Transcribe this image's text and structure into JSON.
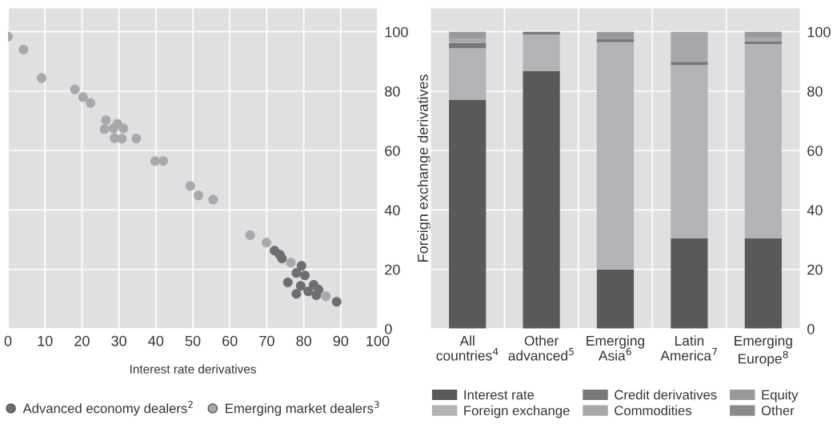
{
  "chart_data": [
    {
      "type": "scatter",
      "xlabel": "Interest rate derivatives",
      "ylabel": "Foreign exchange derivatives",
      "xlim": [
        0,
        100
      ],
      "ylim": [
        0,
        108
      ],
      "xticks": [
        0,
        10,
        20,
        30,
        40,
        50,
        60,
        70,
        80,
        90,
        100
      ],
      "yticks": [
        0,
        20,
        40,
        60,
        80,
        100
      ],
      "grid": true,
      "legend": "bottom",
      "marker": "circle",
      "series": [
        {
          "name": "Advanced economy dealers$^{2}$",
          "color": "#6d6e71",
          "x": [
            72.1,
            73.5,
            74.1,
            79.4,
            78,
            80.3,
            75.7,
            79.2,
            82.7,
            84,
            81.2,
            78,
            83.4,
            88.9
          ],
          "values": [
            26.3,
            25,
            23.7,
            21.2,
            18.8,
            18,
            15.6,
            14.5,
            14.8,
            13.2,
            12.6,
            11.8,
            11.3,
            9.1
          ]
        },
        {
          "name": "Emerging market dealers$^{3}$",
          "color": "#a7a9ac",
          "x": [
            0,
            4.2,
            9.1,
            18.1,
            20.3,
            22.3,
            26.5,
            29.6,
            26.1,
            28.5,
            31.2,
            28.8,
            30.8,
            34.7,
            39.8,
            42,
            49.3,
            51.5,
            55.5,
            65.5,
            69.9,
            76.5,
            86
          ],
          "values": [
            98.4,
            94,
            84.4,
            80.6,
            78,
            76,
            70.2,
            69,
            67.2,
            67.5,
            67.5,
            64.2,
            64,
            64,
            56.5,
            56.5,
            48.1,
            44.9,
            43.5,
            31.5,
            29,
            22.3,
            11
          ]
        }
      ]
    },
    {
      "type": "bar",
      "stacked": true,
      "ylim": [
        0,
        108
      ],
      "yticks": [
        0,
        20,
        40,
        60,
        80,
        100
      ],
      "grid": true,
      "legend": "bottom",
      "categories": [
        "All\ncountries$^{4}$",
        "Other\nadvanced$^{5}$",
        "Emerging\nAsia$^{6}$",
        "Latin\nAmerica$^{7}$",
        "Emerging\nEurope$^{8}$"
      ],
      "series": [
        {
          "name": "Interest rate",
          "color": "#58595b",
          "values": [
            77,
            86.8,
            20,
            30.5,
            30.5
          ]
        },
        {
          "name": "Foreign exchange",
          "color": "#b2b3b6",
          "values": [
            17.5,
            12.3,
            76.5,
            58.3,
            65.4
          ]
        },
        {
          "name": "Credit derivatives",
          "color": "#77787b",
          "values": [
            1.7,
            0.9,
            1.1,
            1.1,
            0.9
          ]
        },
        {
          "name": "Commodities",
          "color": "#a7a8ab",
          "values": [
            1.4,
            null,
            null,
            10.1,
            1.5
          ]
        },
        {
          "name": "Equity",
          "color": "#98999c",
          "values": [
            2.4,
            null,
            2.4,
            null,
            1.7
          ]
        },
        {
          "name": "Other",
          "color": "#8a8b8e",
          "values": [
            null,
            null,
            null,
            null,
            null
          ]
        }
      ]
    }
  ]
}
